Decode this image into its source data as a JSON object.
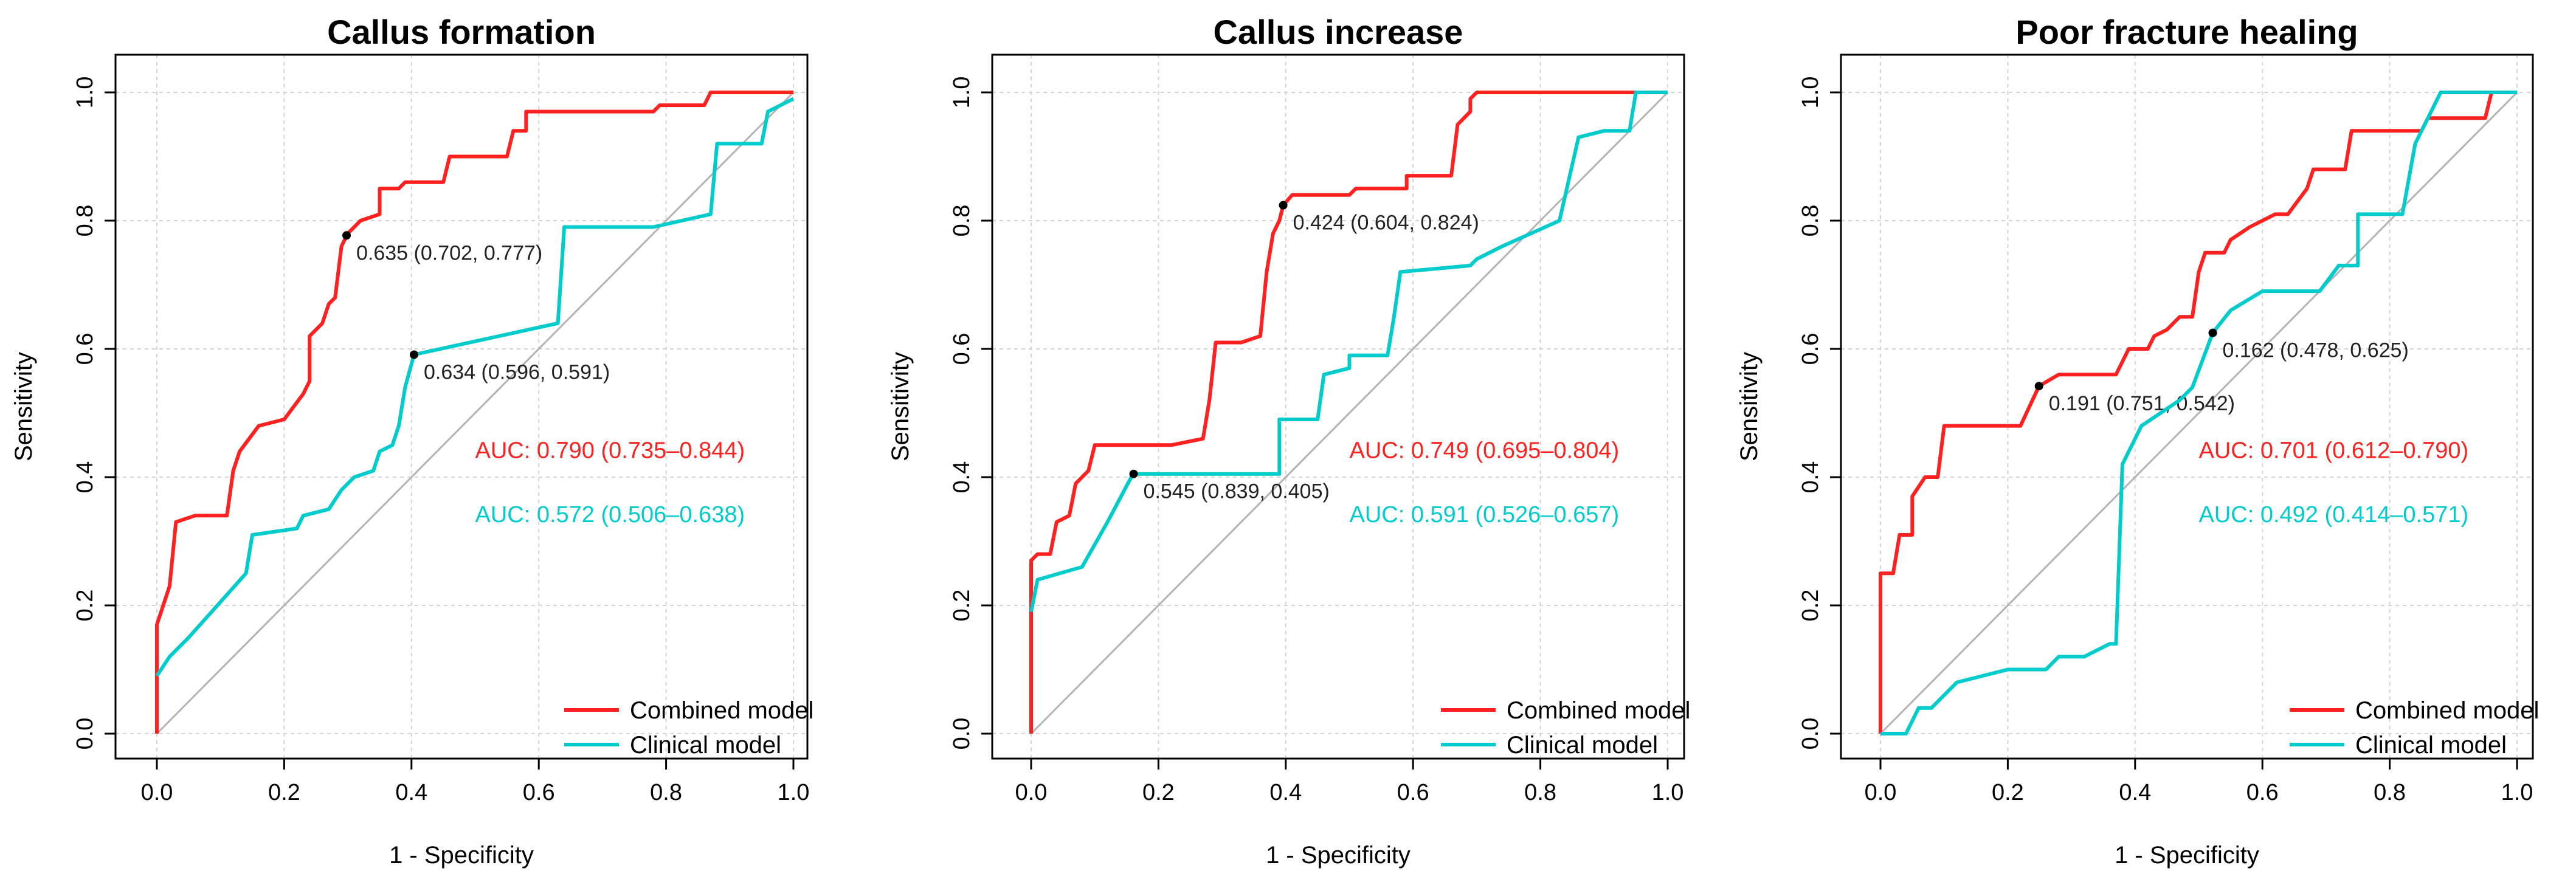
{
  "colors": {
    "combined": "#ff2020",
    "clinical": "#00cccc",
    "diagonal": "#b3b3b3",
    "grid": "#d3d3d3",
    "axis": "#000000",
    "text": "#000000"
  },
  "chart_data": [
    {
      "type": "line",
      "title": "Callus formation",
      "xlabel": "1 - Specificity",
      "ylabel": "Sensitivity",
      "xlim": [
        0,
        1
      ],
      "ylim": [
        0,
        1
      ],
      "xticks": [
        "0.0",
        "0.2",
        "0.4",
        "0.6",
        "0.8",
        "1.0"
      ],
      "yticks": [
        "0.0",
        "0.2",
        "0.4",
        "0.6",
        "0.8",
        "1.0"
      ],
      "grid": true,
      "legend_position": "bottom-right",
      "series": [
        {
          "name": "Combined model",
          "color_key": "combined",
          "auc_label": "AUC: 0.790 (0.735–0.844)",
          "points": [
            [
              0,
              0
            ],
            [
              0,
              0.17
            ],
            [
              0.02,
              0.23
            ],
            [
              0.03,
              0.33
            ],
            [
              0.06,
              0.34
            ],
            [
              0.11,
              0.34
            ],
            [
              0.12,
              0.41
            ],
            [
              0.13,
              0.44
            ],
            [
              0.16,
              0.48
            ],
            [
              0.2,
              0.49
            ],
            [
              0.23,
              0.53
            ],
            [
              0.24,
              0.55
            ],
            [
              0.24,
              0.62
            ],
            [
              0.26,
              0.64
            ],
            [
              0.27,
              0.67
            ],
            [
              0.28,
              0.68
            ],
            [
              0.29,
              0.76
            ],
            [
              0.3,
              0.78
            ],
            [
              0.32,
              0.8
            ],
            [
              0.35,
              0.81
            ],
            [
              0.35,
              0.85
            ],
            [
              0.38,
              0.85
            ],
            [
              0.39,
              0.86
            ],
            [
              0.45,
              0.86
            ],
            [
              0.46,
              0.9
            ],
            [
              0.55,
              0.9
            ],
            [
              0.56,
              0.94
            ],
            [
              0.58,
              0.94
            ],
            [
              0.58,
              0.97
            ],
            [
              0.78,
              0.97
            ],
            [
              0.79,
              0.98
            ],
            [
              0.86,
              0.98
            ],
            [
              0.87,
              1.0
            ],
            [
              1.0,
              1.0
            ]
          ],
          "cutoff": {
            "x": 0.298,
            "y": 0.777,
            "label": "0.635 (0.702, 0.777)"
          }
        },
        {
          "name": "Clinical model",
          "color_key": "clinical",
          "auc_label": "AUC: 0.572 (0.506–0.638)",
          "points": [
            [
              0,
              0.09
            ],
            [
              0.02,
              0.12
            ],
            [
              0.05,
              0.15
            ],
            [
              0.14,
              0.25
            ],
            [
              0.15,
              0.31
            ],
            [
              0.22,
              0.32
            ],
            [
              0.23,
              0.34
            ],
            [
              0.27,
              0.35
            ],
            [
              0.29,
              0.38
            ],
            [
              0.31,
              0.4
            ],
            [
              0.34,
              0.41
            ],
            [
              0.35,
              0.44
            ],
            [
              0.37,
              0.45
            ],
            [
              0.38,
              0.48
            ],
            [
              0.39,
              0.54
            ],
            [
              0.404,
              0.591
            ],
            [
              0.63,
              0.64
            ],
            [
              0.64,
              0.79
            ],
            [
              0.78,
              0.79
            ],
            [
              0.87,
              0.81
            ],
            [
              0.88,
              0.92
            ],
            [
              0.95,
              0.92
            ],
            [
              0.96,
              0.97
            ],
            [
              1.0,
              0.99
            ]
          ],
          "cutoff": {
            "x": 0.404,
            "y": 0.591,
            "label": "0.634 (0.596, 0.591)"
          }
        }
      ]
    },
    {
      "type": "line",
      "title": "Callus increase",
      "xlabel": "1 - Specificity",
      "ylabel": "Sensitivity",
      "xlim": [
        0,
        1
      ],
      "ylim": [
        0,
        1
      ],
      "xticks": [
        "0.0",
        "0.2",
        "0.4",
        "0.6",
        "0.8",
        "1.0"
      ],
      "yticks": [
        "0.0",
        "0.2",
        "0.4",
        "0.6",
        "0.8",
        "1.0"
      ],
      "grid": true,
      "legend_position": "bottom-right",
      "series": [
        {
          "name": "Combined model",
          "color_key": "combined",
          "auc_label": "AUC: 0.749 (0.695–0.804)",
          "points": [
            [
              0,
              0
            ],
            [
              0,
              0.27
            ],
            [
              0.01,
              0.28
            ],
            [
              0.03,
              0.28
            ],
            [
              0.04,
              0.33
            ],
            [
              0.06,
              0.34
            ],
            [
              0.07,
              0.39
            ],
            [
              0.09,
              0.41
            ],
            [
              0.1,
              0.45
            ],
            [
              0.22,
              0.45
            ],
            [
              0.27,
              0.46
            ],
            [
              0.28,
              0.52
            ],
            [
              0.29,
              0.61
            ],
            [
              0.33,
              0.61
            ],
            [
              0.36,
              0.62
            ],
            [
              0.37,
              0.72
            ],
            [
              0.38,
              0.78
            ],
            [
              0.39,
              0.8
            ],
            [
              0.396,
              0.824
            ],
            [
              0.41,
              0.84
            ],
            [
              0.5,
              0.84
            ],
            [
              0.51,
              0.85
            ],
            [
              0.59,
              0.85
            ],
            [
              0.59,
              0.87
            ],
            [
              0.66,
              0.87
            ],
            [
              0.67,
              0.95
            ],
            [
              0.69,
              0.97
            ],
            [
              0.69,
              0.99
            ],
            [
              0.7,
              1.0
            ],
            [
              0.99,
              1.0
            ],
            [
              1.0,
              1.0
            ]
          ],
          "cutoff": {
            "x": 0.396,
            "y": 0.824,
            "label": "0.424 (0.604, 0.824)"
          }
        },
        {
          "name": "Clinical model",
          "color_key": "clinical",
          "auc_label": "AUC: 0.591 (0.526–0.657)",
          "points": [
            [
              0,
              0.19
            ],
            [
              0.01,
              0.24
            ],
            [
              0.08,
              0.26
            ],
            [
              0.12,
              0.33
            ],
            [
              0.16,
              0.405
            ],
            [
              0.39,
              0.405
            ],
            [
              0.39,
              0.49
            ],
            [
              0.45,
              0.49
            ],
            [
              0.46,
              0.56
            ],
            [
              0.5,
              0.57
            ],
            [
              0.5,
              0.59
            ],
            [
              0.56,
              0.59
            ],
            [
              0.57,
              0.65
            ],
            [
              0.58,
              0.72
            ],
            [
              0.69,
              0.73
            ],
            [
              0.7,
              0.74
            ],
            [
              0.74,
              0.76
            ],
            [
              0.83,
              0.8
            ],
            [
              0.86,
              0.93
            ],
            [
              0.9,
              0.94
            ],
            [
              0.94,
              0.94
            ],
            [
              0.95,
              1.0
            ],
            [
              1.0,
              1.0
            ]
          ],
          "cutoff": {
            "x": 0.161,
            "y": 0.405,
            "label": "0.545 (0.839, 0.405)"
          }
        }
      ]
    },
    {
      "type": "line",
      "title": "Poor fracture healing",
      "xlabel": "1 - Specificity",
      "ylabel": "Sensitivity",
      "xlim": [
        0,
        1
      ],
      "ylim": [
        0,
        1
      ],
      "xticks": [
        "0.0",
        "0.2",
        "0.4",
        "0.6",
        "0.8",
        "1.0"
      ],
      "yticks": [
        "0.0",
        "0.2",
        "0.4",
        "0.6",
        "0.8",
        "1.0"
      ],
      "grid": true,
      "legend_position": "bottom-right",
      "series": [
        {
          "name": "Combined model",
          "color_key": "combined",
          "auc_label": "AUC: 0.701 (0.612–0.790)",
          "points": [
            [
              0,
              0
            ],
            [
              0,
              0.25
            ],
            [
              0.02,
              0.25
            ],
            [
              0.03,
              0.31
            ],
            [
              0.05,
              0.31
            ],
            [
              0.05,
              0.37
            ],
            [
              0.07,
              0.4
            ],
            [
              0.09,
              0.4
            ],
            [
              0.1,
              0.48
            ],
            [
              0.22,
              0.48
            ],
            [
              0.249,
              0.542
            ],
            [
              0.28,
              0.56
            ],
            [
              0.37,
              0.56
            ],
            [
              0.39,
              0.6
            ],
            [
              0.42,
              0.6
            ],
            [
              0.43,
              0.62
            ],
            [
              0.45,
              0.63
            ],
            [
              0.47,
              0.65
            ],
            [
              0.49,
              0.65
            ],
            [
              0.5,
              0.72
            ],
            [
              0.51,
              0.75
            ],
            [
              0.54,
              0.75
            ],
            [
              0.55,
              0.77
            ],
            [
              0.58,
              0.79
            ],
            [
              0.6,
              0.8
            ],
            [
              0.62,
              0.81
            ],
            [
              0.64,
              0.81
            ],
            [
              0.67,
              0.85
            ],
            [
              0.68,
              0.88
            ],
            [
              0.73,
              0.88
            ],
            [
              0.74,
              0.94
            ],
            [
              0.85,
              0.94
            ],
            [
              0.86,
              0.96
            ],
            [
              0.95,
              0.96
            ],
            [
              0.96,
              1.0
            ],
            [
              1.0,
              1.0
            ]
          ],
          "cutoff": {
            "x": 0.249,
            "y": 0.542,
            "label": "0.191 (0.751, 0.542)"
          }
        },
        {
          "name": "Clinical model",
          "color_key": "clinical",
          "auc_label": "AUC: 0.492 (0.414–0.571)",
          "points": [
            [
              0,
              0
            ],
            [
              0.04,
              0
            ],
            [
              0.06,
              0.04
            ],
            [
              0.08,
              0.04
            ],
            [
              0.12,
              0.08
            ],
            [
              0.2,
              0.1
            ],
            [
              0.26,
              0.1
            ],
            [
              0.28,
              0.12
            ],
            [
              0.32,
              0.12
            ],
            [
              0.36,
              0.14
            ],
            [
              0.37,
              0.14
            ],
            [
              0.38,
              0.42
            ],
            [
              0.41,
              0.48
            ],
            [
              0.47,
              0.52
            ],
            [
              0.49,
              0.54
            ],
            [
              0.522,
              0.625
            ],
            [
              0.55,
              0.66
            ],
            [
              0.6,
              0.69
            ],
            [
              0.69,
              0.69
            ],
            [
              0.72,
              0.73
            ],
            [
              0.75,
              0.73
            ],
            [
              0.75,
              0.81
            ],
            [
              0.82,
              0.81
            ],
            [
              0.84,
              0.92
            ],
            [
              0.88,
              1.0
            ],
            [
              1.0,
              1.0
            ]
          ],
          "cutoff": {
            "x": 0.522,
            "y": 0.625,
            "label": "0.162 (0.478, 0.625)"
          }
        }
      ]
    }
  ]
}
